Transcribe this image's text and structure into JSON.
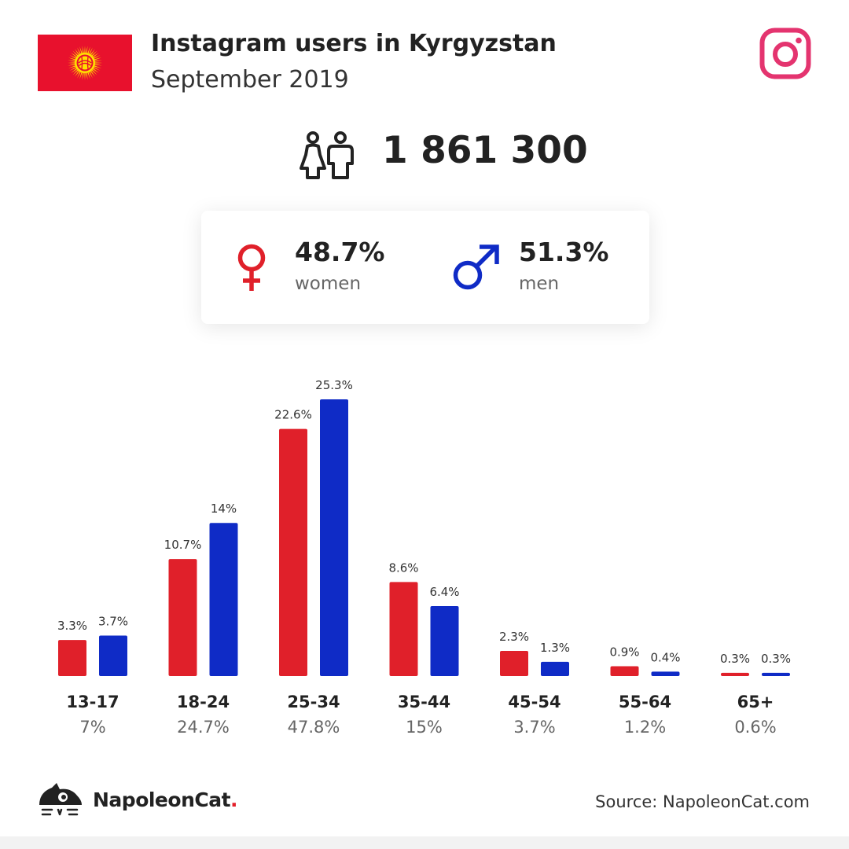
{
  "header": {
    "title": "Instagram users in Kyrgyzstan",
    "subtitle": "September 2019"
  },
  "summary": {
    "total_users": "1 861 300"
  },
  "gender": {
    "women": {
      "percent": "48.7%",
      "label": "women"
    },
    "men": {
      "percent": "51.3%",
      "label": "men"
    }
  },
  "colors": {
    "women": "#e0202a",
    "men": "#0f2bc6",
    "instagram": "#e4346f",
    "flag_red": "#e8112d",
    "flag_sun": "#ffe000"
  },
  "icons": {
    "flag": "kyrgyzstan-flag-icon",
    "platform": "instagram-icon",
    "users": "people-icon",
    "women": "venus-icon",
    "men": "mars-icon",
    "brand": "napoleoncat-logo-icon"
  },
  "chart_data": {
    "type": "bar",
    "categories": [
      "13-17",
      "18-24",
      "25-34",
      "35-44",
      "45-54",
      "55-64",
      "65+"
    ],
    "series": [
      {
        "values": [
          3.3,
          10.7,
          22.6,
          8.6,
          2.3,
          0.9,
          0.3
        ],
        "labels": [
          "3.3%",
          "10.7%",
          "22.6%",
          "8.6%",
          "2.3%",
          "0.9%",
          "0.3%"
        ],
        "color": "#e0202a"
      },
      {
        "values": [
          3.7,
          14,
          25.3,
          6.4,
          1.3,
          0.4,
          0.3
        ],
        "labels": [
          "3.7%",
          "14%",
          "25.3%",
          "6.4%",
          "1.3%",
          "0.4%",
          "0.3%"
        ],
        "color": "#0f2bc6"
      }
    ],
    "category_totals": [
      "7%",
      "24.7%",
      "47.8%",
      "15%",
      "3.7%",
      "1.2%",
      "0.6%"
    ],
    "ylim": [
      0,
      25.3
    ],
    "grid": false,
    "legend": "none"
  },
  "footer": {
    "brand": "NapoleonCat",
    "brand_dot": ".",
    "source": "Source: NapoleonCat.com"
  }
}
